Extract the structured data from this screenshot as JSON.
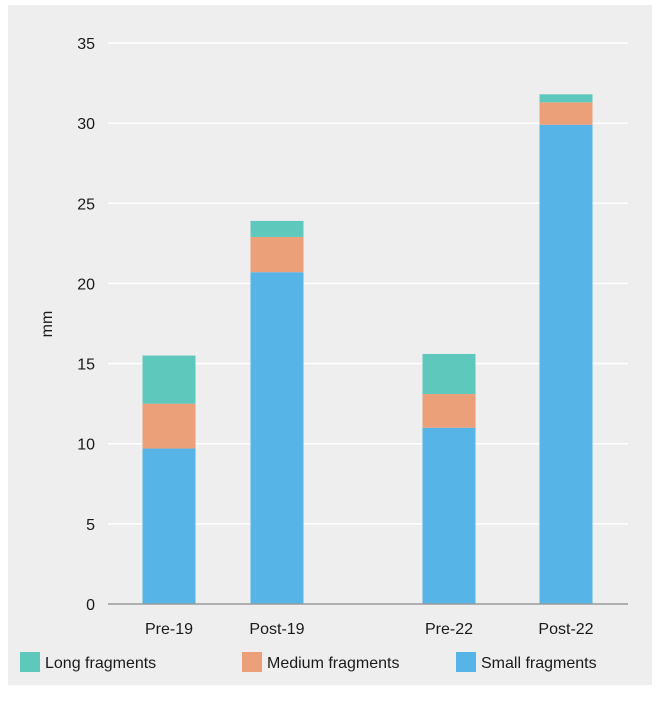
{
  "chart_data": {
    "type": "bar",
    "stacked": true,
    "categories": [
      "Pre-19",
      "Post-19",
      "Pre-22",
      "Post-22"
    ],
    "series": [
      {
        "name": "Small fragments",
        "color": "#56b4e6",
        "values": [
          9.7,
          20.7,
          11.0,
          29.9
        ]
      },
      {
        "name": "Medium fragments",
        "color": "#eba07a",
        "values": [
          2.8,
          2.2,
          2.1,
          1.4
        ]
      },
      {
        "name": "Long fragments",
        "color": "#5ec8bd",
        "values": [
          3.0,
          1.0,
          2.5,
          0.5
        ]
      }
    ],
    "legend": [
      "Long fragments",
      "Medium fragments",
      "Small fragments"
    ],
    "ylabel": "mm",
    "xlabel": "",
    "title": "",
    "ylim": [
      0,
      35
    ],
    "yticks": [
      0,
      5,
      10,
      15,
      20,
      25,
      30,
      35
    ],
    "grid": true,
    "legend_position": "bottom"
  }
}
